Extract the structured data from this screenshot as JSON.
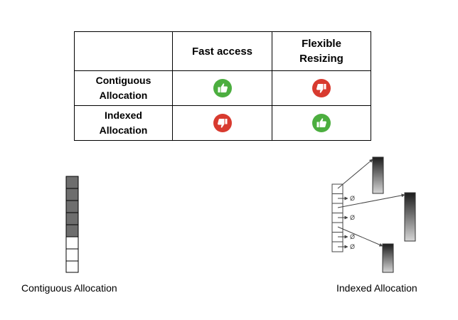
{
  "table": {
    "header": [
      "",
      "Fast access",
      "Flexible Resizing"
    ],
    "rows": [
      {
        "label": "Contiguous Allocation",
        "fast_access": "thumbs-up",
        "flexible_resizing": "thumbs-down"
      },
      {
        "label": "Indexed Allocation",
        "fast_access": "thumbs-down",
        "flexible_resizing": "thumbs-up"
      }
    ]
  },
  "colors": {
    "thumbs_up": "#4cae3f",
    "thumbs_down": "#d83a2f",
    "filled_block": "#6e6e6e"
  },
  "contiguous": {
    "caption": "Contiguous Allocation",
    "blocks_total": 8,
    "blocks_filled": 5
  },
  "indexed": {
    "caption": "Indexed Allocation",
    "null_symbol": "Ø",
    "index_entries": 7,
    "pointed_blocks": 3
  }
}
